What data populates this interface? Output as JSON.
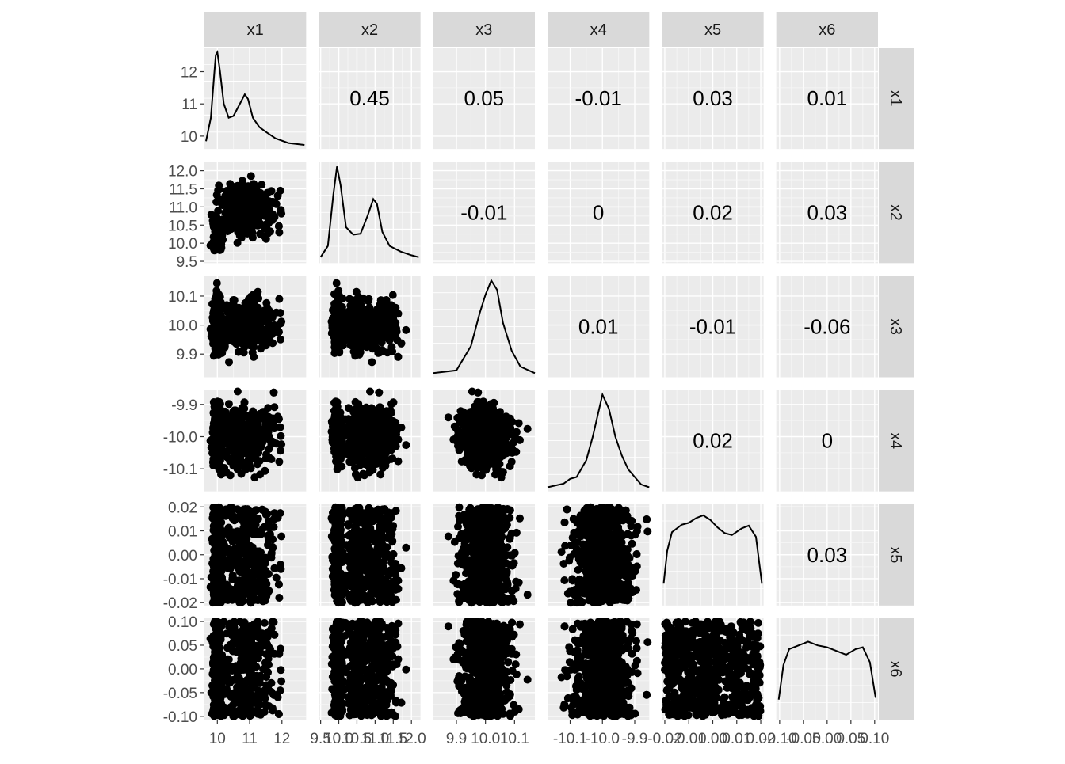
{
  "chart_data": {
    "type": "scatter-matrix",
    "variables": [
      "x1",
      "x2",
      "x3",
      "x4",
      "x5",
      "x6"
    ],
    "column_strips": [
      "x1",
      "x2",
      "x3",
      "x4",
      "x5",
      "x6"
    ],
    "row_strips": [
      "x1",
      "x2",
      "x3",
      "x4",
      "x5",
      "x6"
    ],
    "correlations": [
      {
        "row": "x1",
        "col": "x2",
        "label": "0.45",
        "value": 0.45
      },
      {
        "row": "x1",
        "col": "x3",
        "label": "0.05",
        "value": 0.05
      },
      {
        "row": "x1",
        "col": "x4",
        "label": "-0.01",
        "value": -0.01
      },
      {
        "row": "x1",
        "col": "x5",
        "label": "0.03",
        "value": 0.03
      },
      {
        "row": "x1",
        "col": "x6",
        "label": "0.01",
        "value": 0.01
      },
      {
        "row": "x2",
        "col": "x3",
        "label": "-0.01",
        "value": -0.01
      },
      {
        "row": "x2",
        "col": "x4",
        "label": "0",
        "value": 0
      },
      {
        "row": "x2",
        "col": "x5",
        "label": "0.02",
        "value": 0.02
      },
      {
        "row": "x2",
        "col": "x6",
        "label": "0.03",
        "value": 0.03
      },
      {
        "row": "x3",
        "col": "x4",
        "label": "0.01",
        "value": 0.01
      },
      {
        "row": "x3",
        "col": "x5",
        "label": "-0.01",
        "value": -0.01
      },
      {
        "row": "x3",
        "col": "x6",
        "label": "-0.06",
        "value": -0.06
      },
      {
        "row": "x4",
        "col": "x5",
        "label": "0.02",
        "value": 0.02
      },
      {
        "row": "x4",
        "col": "x6",
        "label": "0",
        "value": 0
      },
      {
        "row": "x5",
        "col": "x6",
        "label": "0.03",
        "value": 0.03
      }
    ],
    "axes": [
      {
        "var": "x1",
        "range": [
          9.6,
          12.75
        ],
        "ticks": [
          {
            "value": 10,
            "label": "10"
          },
          {
            "value": 11,
            "label": "11"
          },
          {
            "value": 12,
            "label": "12"
          }
        ]
      },
      {
        "var": "x2",
        "range": [
          9.45,
          12.25
        ],
        "ticks": [
          {
            "value": 9.5,
            "label": "9.5"
          },
          {
            "value": 10.0,
            "label": "10.0"
          },
          {
            "value": 10.5,
            "label": "10.5"
          },
          {
            "value": 11.0,
            "label": "11.0"
          },
          {
            "value": 11.5,
            "label": "11.5"
          },
          {
            "value": 12.0,
            "label": "12.0"
          }
        ]
      },
      {
        "var": "x3",
        "range": [
          9.82,
          10.17
        ],
        "ticks": [
          {
            "value": 9.9,
            "label": "9.9"
          },
          {
            "value": 10.0,
            "label": "10.0"
          },
          {
            "value": 10.1,
            "label": "10.1"
          }
        ]
      },
      {
        "var": "x4",
        "range": [
          -10.17,
          -9.855
        ],
        "ticks": [
          {
            "value": -10.1,
            "label": "-10.1"
          },
          {
            "value": -10.0,
            "label": "-10.0"
          },
          {
            "value": -9.9,
            "label": "-9.9"
          }
        ]
      },
      {
        "var": "x5",
        "range": [
          -0.0212,
          0.0212
        ],
        "ticks": [
          {
            "value": -0.02,
            "label": "-0.02"
          },
          {
            "value": -0.01,
            "label": "-0.01"
          },
          {
            "value": 0.0,
            "label": "0.00"
          },
          {
            "value": 0.01,
            "label": "0.01"
          },
          {
            "value": 0.02,
            "label": "0.02"
          }
        ]
      },
      {
        "var": "x6",
        "range": [
          -0.107,
          0.107
        ],
        "ticks": [
          {
            "value": -0.1,
            "label": "-0.10"
          },
          {
            "value": -0.05,
            "label": "-0.05"
          },
          {
            "value": 0.0,
            "label": "0.00"
          },
          {
            "value": 0.05,
            "label": "0.05"
          },
          {
            "value": 0.1,
            "label": "0.10"
          }
        ]
      }
    ],
    "density_curves": [
      {
        "var": "x1",
        "points": [
          [
            9.65,
            0.05
          ],
          [
            9.8,
            0.3
          ],
          [
            9.9,
            0.75
          ],
          [
            9.95,
            0.97
          ],
          [
            10.0,
            1.0
          ],
          [
            10.08,
            0.8
          ],
          [
            10.2,
            0.45
          ],
          [
            10.35,
            0.3
          ],
          [
            10.5,
            0.32
          ],
          [
            10.7,
            0.45
          ],
          [
            10.85,
            0.55
          ],
          [
            10.95,
            0.5
          ],
          [
            11.1,
            0.3
          ],
          [
            11.3,
            0.2
          ],
          [
            11.5,
            0.15
          ],
          [
            11.8,
            0.08
          ],
          [
            12.2,
            0.03
          ],
          [
            12.7,
            0.01
          ]
        ]
      },
      {
        "var": "x2",
        "points": [
          [
            9.5,
            0.03
          ],
          [
            9.7,
            0.15
          ],
          [
            9.85,
            0.7
          ],
          [
            9.95,
            1.0
          ],
          [
            10.05,
            0.8
          ],
          [
            10.2,
            0.35
          ],
          [
            10.4,
            0.27
          ],
          [
            10.6,
            0.28
          ],
          [
            10.8,
            0.48
          ],
          [
            10.95,
            0.65
          ],
          [
            11.05,
            0.6
          ],
          [
            11.2,
            0.3
          ],
          [
            11.4,
            0.15
          ],
          [
            11.7,
            0.09
          ],
          [
            12.0,
            0.05
          ],
          [
            12.2,
            0.03
          ]
        ]
      },
      {
        "var": "x3",
        "points": [
          [
            9.82,
            0.01
          ],
          [
            9.9,
            0.04
          ],
          [
            9.95,
            0.3
          ],
          [
            9.98,
            0.65
          ],
          [
            10.0,
            0.85
          ],
          [
            10.02,
            1.0
          ],
          [
            10.04,
            0.9
          ],
          [
            10.06,
            0.55
          ],
          [
            10.09,
            0.25
          ],
          [
            10.12,
            0.08
          ],
          [
            10.17,
            0.01
          ]
        ]
      },
      {
        "var": "x4",
        "points": [
          [
            -10.17,
            0.01
          ],
          [
            -10.12,
            0.05
          ],
          [
            -10.1,
            0.1
          ],
          [
            -10.08,
            0.12
          ],
          [
            -10.05,
            0.3
          ],
          [
            -10.03,
            0.55
          ],
          [
            -10.01,
            0.85
          ],
          [
            -10.0,
            1.0
          ],
          [
            -9.98,
            0.85
          ],
          [
            -9.96,
            0.55
          ],
          [
            -9.94,
            0.35
          ],
          [
            -9.92,
            0.2
          ],
          [
            -9.9,
            0.12
          ],
          [
            -9.88,
            0.04
          ],
          [
            -9.855,
            0.01
          ]
        ]
      },
      {
        "var": "x5",
        "points": [
          [
            -0.0205,
            0.2
          ],
          [
            -0.019,
            0.55
          ],
          [
            -0.017,
            0.75
          ],
          [
            -0.013,
            0.83
          ],
          [
            -0.01,
            0.85
          ],
          [
            -0.007,
            0.9
          ],
          [
            -0.004,
            0.93
          ],
          [
            -0.001,
            0.88
          ],
          [
            0.002,
            0.8
          ],
          [
            0.005,
            0.74
          ],
          [
            0.008,
            0.72
          ],
          [
            0.012,
            0.79
          ],
          [
            0.015,
            0.82
          ],
          [
            0.018,
            0.7
          ],
          [
            0.0205,
            0.2
          ]
        ]
      },
      {
        "var": "x6",
        "points": [
          [
            -0.102,
            0.18
          ],
          [
            -0.092,
            0.55
          ],
          [
            -0.08,
            0.72
          ],
          [
            -0.06,
            0.76
          ],
          [
            -0.04,
            0.8
          ],
          [
            -0.02,
            0.76
          ],
          [
            0.0,
            0.74
          ],
          [
            0.02,
            0.7
          ],
          [
            0.04,
            0.66
          ],
          [
            0.06,
            0.72
          ],
          [
            0.075,
            0.74
          ],
          [
            0.09,
            0.58
          ],
          [
            0.102,
            0.2
          ]
        ]
      }
    ]
  }
}
